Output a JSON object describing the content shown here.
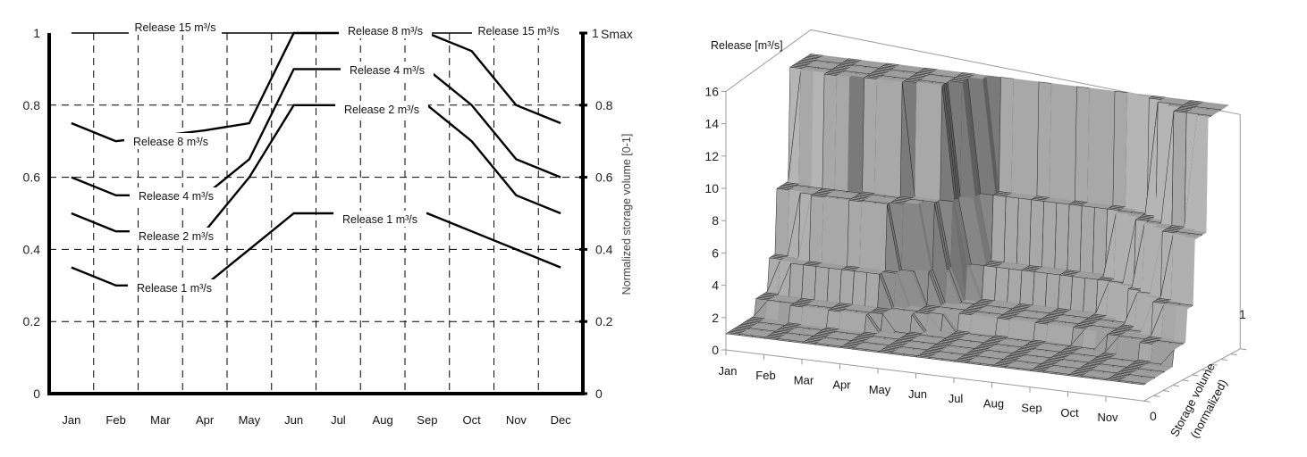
{
  "chart_data": [
    {
      "type": "line",
      "categories": [
        "Jan",
        "Feb",
        "Mar",
        "Apr",
        "May",
        "Jun",
        "Jul",
        "Aug",
        "Sep",
        "Oct",
        "Nov",
        "Dec"
      ],
      "ylim": [
        0,
        1
      ],
      "yticks": [
        "0",
        "0.2",
        "0.4",
        "0.6",
        "0.8",
        "1"
      ],
      "y2ticks": [
        "0",
        "0.2",
        "0.4",
        "0.6",
        "0.8",
        "1"
      ],
      "y2label": "Normalized storage volume [0-1]",
      "y2_top_label": "Smax",
      "grid": "dashed",
      "series": [
        {
          "name": "Release 15 m³/s",
          "values": [
            1,
            1,
            1,
            1,
            1,
            1,
            1,
            1,
            1,
            1,
            1,
            1
          ]
        },
        {
          "name": "Release 8 m³/s",
          "values": [
            0.75,
            0.7,
            0.715,
            0.73,
            0.75,
            1,
            1,
            1,
            1,
            0.95,
            0.8,
            0.75
          ]
        },
        {
          "name": "Release 4 m³/s",
          "values": [
            0.6,
            0.55,
            0.55,
            0.55,
            0.65,
            0.9,
            0.9,
            0.9,
            0.9,
            0.8,
            0.65,
            0.6
          ]
        },
        {
          "name": "Release 2 m³/s",
          "values": [
            0.5,
            0.45,
            0.45,
            0.45,
            0.6,
            0.8,
            0.8,
            0.8,
            0.8,
            0.7,
            0.55,
            0.5
          ]
        },
        {
          "name": "Release 1 m³/s",
          "values": [
            0.35,
            0.3,
            0.3,
            0.3,
            0.4,
            0.5,
            0.5,
            0.5,
            0.5,
            0.45,
            0.4,
            0.35
          ]
        }
      ],
      "annotations": [
        "Release 15 m³/s",
        "Release 8 m³/s",
        "Release 15 m³/s",
        "Release 8 m³/s",
        "Release 4 m³/s",
        "Release 2 m³/s",
        "Release 1 m³/s",
        "Release 4 m³/s",
        "Release 2 m³/s",
        "Release 1 m³/s"
      ]
    },
    {
      "type": "surface",
      "zlabel": "Release [m³/s]",
      "zlim": [
        0,
        16
      ],
      "zticks": [
        "0",
        "2",
        "4",
        "6",
        "8",
        "10",
        "12",
        "14",
        "16"
      ],
      "xticks": [
        "Jan",
        "Feb",
        "Mar",
        "Apr",
        "May",
        "Jun",
        "Jul",
        "Aug",
        "Sep",
        "Oct",
        "Nov"
      ],
      "ylabel": [
        "Storage volume",
        "(normalized)"
      ],
      "yticks": [
        "0",
        "1"
      ],
      "release_levels": [
        1,
        2,
        4,
        8,
        15
      ],
      "color": "#a0a0a0"
    }
  ]
}
